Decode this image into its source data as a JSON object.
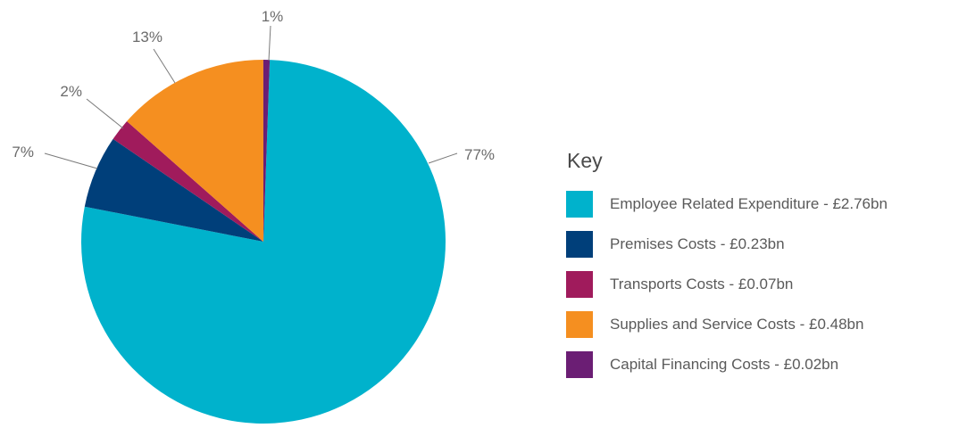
{
  "chart_data": {
    "type": "pie",
    "legend_title": "Key",
    "legend_position": "right",
    "slices": [
      {
        "label": "Employee Related Expenditure - £2.76bn",
        "value": 2.76,
        "pct_label": "77%",
        "color": "#00b2cc"
      },
      {
        "label": "Premises Costs - £0.23bn",
        "value": 0.23,
        "pct_label": "7%",
        "color": "#003f7a"
      },
      {
        "label": "Transports Costs - £0.07bn",
        "value": 0.07,
        "pct_label": "2%",
        "color": "#a01b5c"
      },
      {
        "label": "Supplies and Service Costs - £0.48bn",
        "value": 0.48,
        "pct_label": "13%",
        "color": "#f58f20"
      },
      {
        "label": "Capital Financing Costs - £0.02bn",
        "value": 0.02,
        "pct_label": "1%",
        "color": "#6b1e74"
      }
    ]
  }
}
